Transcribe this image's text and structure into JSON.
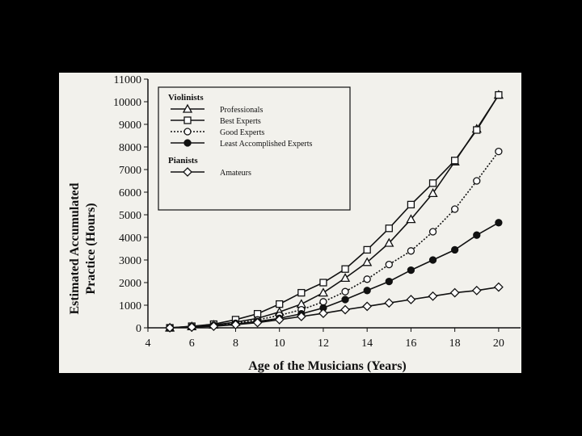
{
  "chart_data": {
    "type": "line",
    "xlabel": "Age of the Musicians (Years)",
    "ylabel_lines": [
      "Estimated Accumulated",
      "Practice (Hours)"
    ],
    "xlim": [
      4,
      21
    ],
    "ylim": [
      0,
      11000
    ],
    "x_ticks": [
      4,
      6,
      8,
      10,
      12,
      14,
      16,
      18,
      20
    ],
    "y_ticks": [
      0,
      1000,
      2000,
      3000,
      4000,
      5000,
      6000,
      7000,
      8000,
      9000,
      10000,
      11000
    ],
    "grid": false,
    "legend_position": "top-left",
    "legend_groups": [
      {
        "title": "Violinists",
        "series_indices": [
          0,
          1,
          2,
          3
        ]
      },
      {
        "title": "Pianists",
        "series_indices": [
          4
        ]
      }
    ],
    "x": [
      5,
      6,
      7,
      8,
      9,
      10,
      11,
      12,
      13,
      14,
      15,
      16,
      17,
      18,
      19,
      20
    ],
    "series": [
      {
        "name": "Professionals",
        "marker": "triangle",
        "dash": "solid",
        "fill": "#ffffff",
        "values": [
          0,
          60,
          130,
          250,
          420,
          700,
          1050,
          1550,
          2200,
          2900,
          3750,
          4800,
          5950,
          7350,
          8800,
          10300
        ]
      },
      {
        "name": "Best Experts",
        "marker": "square",
        "dash": "solid",
        "fill": "#ffffff",
        "values": [
          0,
          70,
          160,
          360,
          620,
          1050,
          1550,
          2000,
          2600,
          3450,
          4400,
          5450,
          6400,
          7400,
          8750,
          10300
        ]
      },
      {
        "name": "Good Experts",
        "marker": "circle",
        "dash": "dotted",
        "fill": "#ffffff",
        "values": [
          0,
          50,
          110,
          200,
          350,
          550,
          800,
          1150,
          1600,
          2150,
          2800,
          3400,
          4250,
          5250,
          6500,
          7800
        ]
      },
      {
        "name": "Least Accomplished Experts",
        "marker": "circle",
        "dash": "solid",
        "fill": "#111111",
        "values": [
          0,
          40,
          90,
          170,
          280,
          420,
          620,
          880,
          1250,
          1650,
          2050,
          2550,
          3000,
          3450,
          4100,
          4650
        ]
      },
      {
        "name": "Amateurs",
        "marker": "diamond",
        "dash": "solid",
        "fill": "#ffffff",
        "values": [
          0,
          30,
          70,
          140,
          230,
          360,
          500,
          640,
          800,
          950,
          1100,
          1250,
          1400,
          1550,
          1650,
          1800
        ]
      }
    ]
  }
}
